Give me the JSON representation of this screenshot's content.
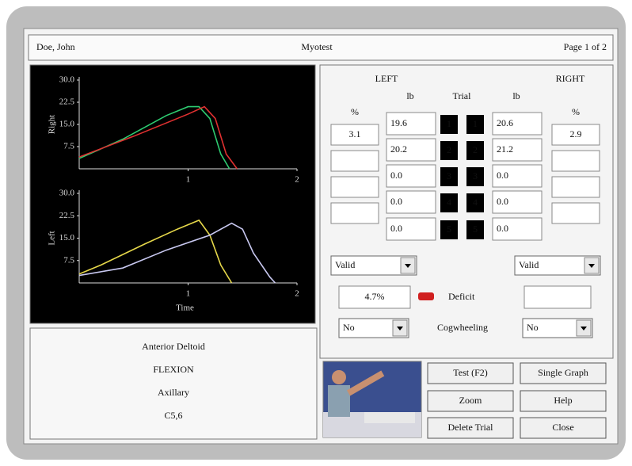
{
  "header": {
    "name": "Doe, John",
    "title": "Myotest",
    "page": "Page 1 of 2"
  },
  "chart_data": [
    {
      "type": "line",
      "y_label": "Right",
      "xlim": [
        0,
        2
      ],
      "xticks": [
        1,
        2
      ],
      "ylim": [
        0,
        30
      ],
      "yticks": [
        7.5,
        {
          "value": 15,
          "label": "15.0"
        },
        22.5,
        {
          "value": 30,
          "label": "30.0"
        }
      ],
      "series": [
        {
          "color": "#2ecc71",
          "x": [
            0,
            0.4,
            0.8,
            1.0,
            1.1,
            1.2,
            1.3,
            1.38
          ],
          "values": [
            3.5,
            10,
            18,
            21,
            21,
            17,
            5,
            0
          ]
        },
        {
          "color": "#e03030",
          "x": [
            0,
            0.5,
            1.0,
            1.15,
            1.25,
            1.35,
            1.45
          ],
          "values": [
            4,
            11,
            18.5,
            21,
            17,
            5,
            0
          ]
        }
      ]
    },
    {
      "type": "line",
      "y_label": "Left",
      "x_label": "Time",
      "xlim": [
        0,
        2
      ],
      "xticks": [
        1,
        2
      ],
      "ylim": [
        0,
        30
      ],
      "yticks": [
        7.5,
        {
          "value": 15,
          "label": "15.0"
        },
        22.5,
        {
          "value": 30,
          "label": "30.0"
        }
      ],
      "series": [
        {
          "color": "#e6d84a",
          "x": [
            0,
            0.2,
            0.6,
            0.9,
            1.1,
            1.2,
            1.3,
            1.4
          ],
          "values": [
            3,
            6,
            13,
            18,
            21,
            16,
            6,
            0
          ]
        },
        {
          "color": "#c8c8f0",
          "x": [
            0,
            0.4,
            0.8,
            1.2,
            1.4,
            1.5,
            1.6,
            1.75,
            1.8
          ],
          "values": [
            2.5,
            5,
            11,
            16,
            20,
            18,
            10,
            2,
            0
          ]
        }
      ]
    }
  ],
  "info": {
    "muscle": "Anterior Deltoid",
    "motion": "FLEXION",
    "nerve": "Axillary",
    "root": "C5,6"
  },
  "trials": {
    "left_title": "LEFT",
    "right_title": "RIGHT",
    "left_lb_header": "lb",
    "trial_header": "Trial",
    "right_lb_header": "lb",
    "left_pct_header": "%",
    "right_pct_header": "%",
    "left_pct": "3.1",
    "right_pct": "2.9",
    "rows": [
      {
        "left_lb": "19.6",
        "left_trial": "1",
        "left_color": "#e8e8e8",
        "right_trial": "1",
        "right_color": "#2ecc71",
        "right_lb": "20.6"
      },
      {
        "left_lb": "20.2",
        "left_trial": "2",
        "left_color": "#e6d84a",
        "right_trial": "2",
        "right_color": "#e03030",
        "right_lb": "21.2"
      },
      {
        "left_lb": "0.0",
        "left_trial": "3",
        "left_color": "#e03030",
        "right_trial": "3",
        "right_color": "#20b0b0",
        "right_lb": "0.0"
      },
      {
        "left_lb": "0.0",
        "left_trial": "4",
        "left_color": "#4060ff",
        "right_trial": "4",
        "right_color": "#e8e8e8",
        "right_lb": "0.0"
      },
      {
        "left_lb": "0.0",
        "left_trial": "5",
        "left_color": "#d8c040",
        "right_trial": "5",
        "right_color": "#c08060",
        "right_lb": "0.0"
      }
    ],
    "left_validity": "Valid",
    "right_validity": "Valid",
    "deficit_value": "4.7%",
    "deficit_label": "Deficit",
    "cog_left": "No",
    "cog_label": "Cogwheeling",
    "cog_right": "No"
  },
  "buttons": [
    "Test  (F2)",
    "Single Graph",
    "Zoom",
    "Help",
    "Delete Trial",
    "Close"
  ]
}
